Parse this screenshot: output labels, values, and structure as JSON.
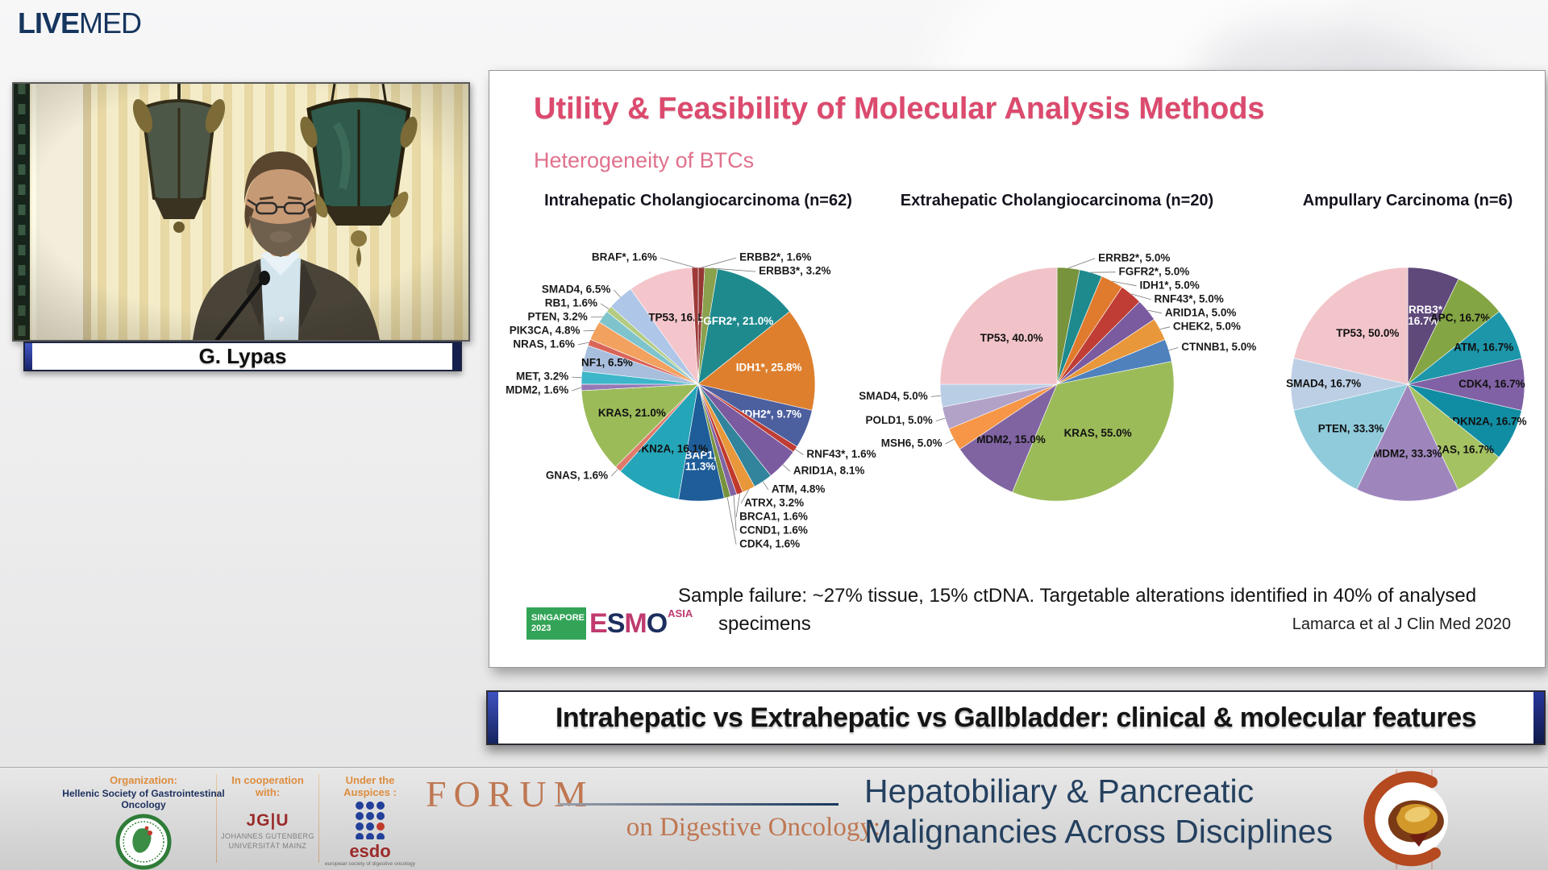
{
  "brand": {
    "live": "LIVE",
    "med": "MED"
  },
  "speaker": {
    "name": "G. Lypas"
  },
  "slide": {
    "title": "Utility & Feasibility of Molecular Analysis Methods",
    "subtitle": "Heterogeneity of BTCs",
    "note_line1": "Sample failure: ~27% tissue, 15% ctDNA. Targetable alterations identified in 40% of analysed",
    "note_line2": "specimens",
    "citation": "Lamarca et al J Clin Med 2020",
    "esmo": {
      "box_line1": "SINGAPORE",
      "box_line2": "2023",
      "brand_letters": [
        "E",
        "S",
        "M",
        "O"
      ],
      "region": "ASIA"
    }
  },
  "banner": {
    "text": "Intrahepatic vs Extrahepatic vs Gallbladder: clinical & molecular features"
  },
  "footer": {
    "org_label": "Organization:",
    "org_name": "Hellenic Society of Gastrointestinal Oncology",
    "coop_label": "In cooperation with:",
    "coop_logo_main": "JG|U",
    "coop_name1": "JOHANNES GUTENBERG",
    "coop_name2": "UNIVERSITÄT MAINZ",
    "auspices_label": "Under the Auspices :",
    "esdo_name": "esdo",
    "esdo_tagline": "european society of digestive oncology",
    "forum": "FORUM",
    "forum_sub": "on Digestive Oncology:",
    "title_line1": "Hepatobiliary & Pancreatic",
    "title_line2": "Malignancies Across Disciplines"
  },
  "colors": {
    "title_pink": "#dc4a6e",
    "subtitle_pink": "#e0718c",
    "navy": "#16355e",
    "footer_orange": "#dd8d3f",
    "forum_salmon": "#bf7752",
    "footer_title_navy": "#24405f",
    "esdo_red": "#9c2a2a",
    "jgu_red": "#9a2b2b",
    "esmo_green": "#33a457",
    "esmo_magenta": "#c03a6e",
    "esmo_navy": "#1d2e5e"
  },
  "chart_data": [
    {
      "type": "pie",
      "title": "Intrahepatic Cholangiocarcinoma (n=62)",
      "unit": "percent of patients",
      "legend_position": "none",
      "slices": [
        {
          "label": "ERBB2*, 1.6%",
          "value": 1.6,
          "color": "#943634"
        },
        {
          "label": "ERBB3*, 3.2%",
          "value": 3.2,
          "color": "#8aa14d"
        },
        {
          "label": "FGFR2*, 21.0%",
          "value": 21.0,
          "color": "#1e8a8e",
          "inside": true,
          "text_color": "#ffffff",
          "r_frac": 0.62
        },
        {
          "label": "IDH1*, 25.8%",
          "value": 25.8,
          "color": "#de7f2e",
          "inside": true,
          "text_color": "#ffffff",
          "r_frac": 0.62
        },
        {
          "label": "IDH2*, 9.7%",
          "value": 9.7,
          "color": "#4c5f9e",
          "inside": true,
          "text_color": "#ffffff",
          "r_frac": 0.68
        },
        {
          "label": "RNF43*, 1.6%",
          "value": 1.6,
          "color": "#bf3d35"
        },
        {
          "label": "ARID1A, 8.1%",
          "value": 8.1,
          "color": "#7a5ba0"
        },
        {
          "label": "ATM, 4.8%",
          "value": 4.8,
          "color": "#31849b"
        },
        {
          "label": "ATRX, 3.2%",
          "value": 3.2,
          "color": "#e8973a"
        },
        {
          "label": "BRCA1, 1.6%",
          "value": 1.6,
          "color": "#c0392b"
        },
        {
          "label": "CCND1, 1.6%",
          "value": 1.6,
          "color": "#8064a2"
        },
        {
          "label": "CDK4, 1.6%",
          "value": 1.6,
          "color": "#77933c"
        },
        {
          "label": "BAP1,\n11.3%",
          "value": 11.3,
          "color": "#1f5d99",
          "inside": true,
          "text_color": "#ffffff",
          "r_frac": 0.66
        },
        {
          "label": "CDKN2A, 16.1%",
          "value": 16.1,
          "color": "#25a5b8",
          "inside": true,
          "r_frac": 0.62
        },
        {
          "label": "GNAS, 1.6%",
          "value": 1.6,
          "color": "#e07a6a"
        },
        {
          "label": "KRAS, 21.0%",
          "value": 21.0,
          "color": "#9bbb59",
          "inside": true,
          "r_frac": 0.62
        },
        {
          "label": "MDM2, 1.6%",
          "value": 1.6,
          "color": "#9678b6"
        },
        {
          "label": "MET, 3.2%",
          "value": 3.2,
          "color": "#3eb6c9"
        },
        {
          "label": "NF1, 6.5%",
          "value": 6.5,
          "color": "#a8bedd",
          "inside": true,
          "r_frac": 0.8
        },
        {
          "label": "NRAS, 1.6%",
          "value": 1.6,
          "color": "#d96459"
        },
        {
          "label": "PIK3CA, 4.8%",
          "value": 4.8,
          "color": "#f2a15f"
        },
        {
          "label": "PTEN, 3.2%",
          "value": 3.2,
          "color": "#7fc4cc"
        },
        {
          "label": "RB1, 1.6%",
          "value": 1.6,
          "color": "#b3cc82"
        },
        {
          "label": "SMAD4, 6.5%",
          "value": 6.5,
          "color": "#aec6e8"
        },
        {
          "label": "TP53, 16.1",
          "value": 16.1,
          "color": "#f4c6cb",
          "inside": true,
          "r_frac": 0.6
        },
        {
          "label": "BRAF*, 1.6%",
          "value": 1.6,
          "color": "#9e3a38"
        }
      ]
    },
    {
      "type": "pie",
      "title": "Extrahepatic Cholangiocarcinoma (n=20)",
      "unit": "percent of patients",
      "legend_position": "none",
      "slices": [
        {
          "label": "ERRB2*, 5.0%",
          "value": 5,
          "color": "#77933c"
        },
        {
          "label": "FGFR2*, 5.0%",
          "value": 5,
          "color": "#1e8a8e"
        },
        {
          "label": "IDH1*, 5.0%",
          "value": 5,
          "color": "#e07b2e"
        },
        {
          "label": "RNF43*, 5.0%",
          "value": 5,
          "color": "#bf3d35"
        },
        {
          "label": "ARID1A, 5.0%",
          "value": 5,
          "color": "#7a5ba0"
        },
        {
          "label": "CHEK2, 5.0%",
          "value": 5,
          "color": "#e8973a"
        },
        {
          "label": "CTNNB1, 5.0%",
          "value": 5,
          "color": "#4f81bd"
        },
        {
          "label": "KRAS, 55.0%",
          "value": 55,
          "color": "#9bbb59",
          "inside": true,
          "r_frac": 0.55
        },
        {
          "label": "MDM2, 15.0%",
          "value": 15,
          "color": "#8064a2",
          "inside": true,
          "r_frac": 0.62
        },
        {
          "label": "MSH6, 5.0%",
          "value": 5,
          "color": "#f79646"
        },
        {
          "label": "POLD1, 5.0%",
          "value": 5,
          "color": "#b2a2c8"
        },
        {
          "label": "SMAD4, 5.0%",
          "value": 5,
          "color": "#b9cde5"
        },
        {
          "label": "TP53, 40.0%",
          "value": 40,
          "color": "#f1c3c8",
          "inside": true,
          "r_frac": 0.55
        }
      ]
    },
    {
      "type": "pie",
      "title": "Ampullary Carcinoma (n=6)",
      "unit": "percent of patients",
      "legend_position": "none",
      "slices": [
        {
          "label": "ERRB3*,\n16.7%",
          "value": 16.7,
          "color": "#5f497a",
          "inside": true,
          "text_color": "#ffffff",
          "r_frac": 0.6
        },
        {
          "label": "APC, 16.7%",
          "value": 16.7,
          "color": "#84a543",
          "inside": true,
          "r_frac": 0.72
        },
        {
          "label": "ATM, 16.7%",
          "value": 16.7,
          "color": "#1d96aa",
          "inside": true,
          "r_frac": 0.72
        },
        {
          "label": "CDK4, 16.7%",
          "value": 16.7,
          "color": "#8161a5",
          "inside": true,
          "r_frac": 0.72
        },
        {
          "label": "CDKN2A, 16.7%",
          "value": 16.7,
          "color": "#118da3",
          "inside": true,
          "r_frac": 0.74
        },
        {
          "label": "KRAS, 16.7%",
          "value": 16.7,
          "color": "#a5c262",
          "inside": true,
          "r_frac": 0.72
        },
        {
          "label": "MDM2, 33.3%",
          "value": 33.3,
          "color": "#9e86bd",
          "inside": true,
          "r_frac": 0.6
        },
        {
          "label": "PTEN, 33.3%",
          "value": 33.3,
          "color": "#8fcbdb",
          "inside": true,
          "r_frac": 0.62
        },
        {
          "label": "SMAD4, 16.7%",
          "value": 16.7,
          "color": "#bccfe5",
          "inside": true,
          "r_frac": 0.72
        },
        {
          "label": "TP53, 50.0%",
          "value": 50,
          "color": "#f2c5ca",
          "inside": true,
          "r_frac": 0.55
        }
      ]
    }
  ]
}
